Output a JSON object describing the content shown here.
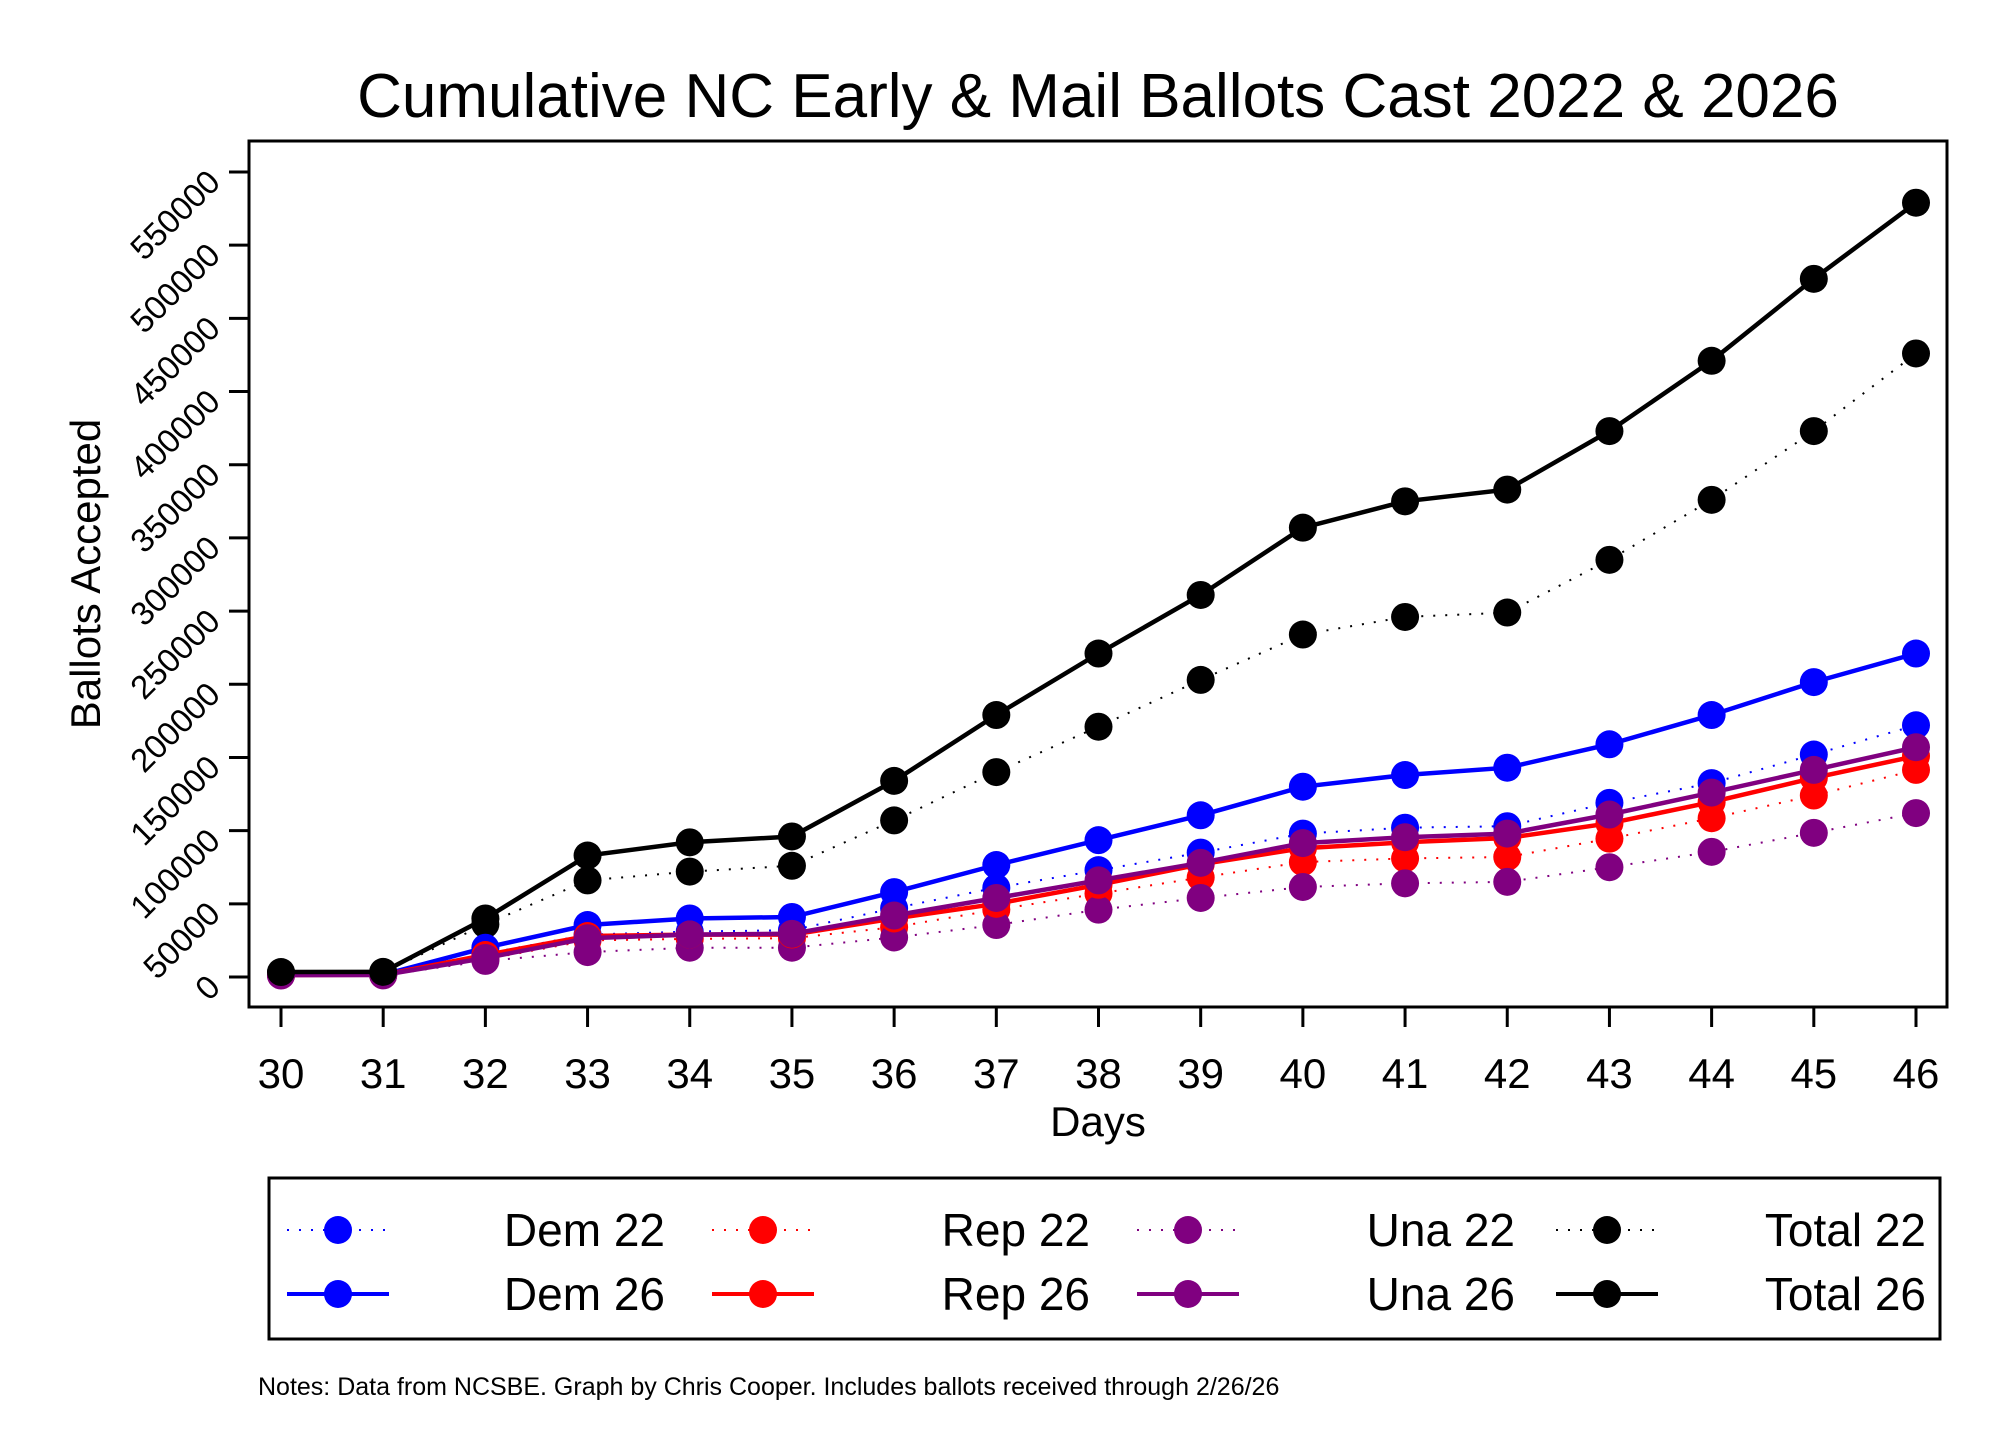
{
  "chart_data": {
    "type": "line",
    "title": "Cumulative NC Early & Mail Ballots Cast 2022 & 2026",
    "xlabel": "Days",
    "ylabel": "Ballots Accepted",
    "x": [
      30,
      31,
      32,
      33,
      34,
      35,
      36,
      37,
      38,
      39,
      40,
      41,
      42,
      43,
      44,
      45,
      46
    ],
    "x_ticks": [
      "30",
      "31",
      "32",
      "33",
      "34",
      "35",
      "36",
      "37",
      "38",
      "39",
      "40",
      "41",
      "42",
      "43",
      "44",
      "45",
      "46"
    ],
    "y_ticks": [
      "0",
      "50000",
      "100000",
      "150000",
      "200000",
      "250000",
      "300000",
      "350000",
      "400000",
      "450000",
      "500000",
      "550000"
    ],
    "y_tick_values": [
      0,
      50000,
      100000,
      150000,
      200000,
      250000,
      300000,
      350000,
      400000,
      450000,
      500000,
      550000
    ],
    "xlim": [
      30,
      46
    ],
    "ylim": [
      0,
      550000
    ],
    "grid": false,
    "legend_position": "bottom",
    "series": [
      {
        "name": "Dem 22",
        "color": "#0000ff",
        "style": "dotted",
        "values": [
          1400,
          1500,
          16000,
          29000,
          31000,
          32000,
          47000,
          61000,
          73000,
          85000,
          98000,
          102000,
          103000,
          119000,
          132500,
          152000,
          172000
        ]
      },
      {
        "name": "Rep 22",
        "color": "#ff0000",
        "style": "dotted",
        "values": [
          1300,
          1400,
          12000,
          25000,
          26000,
          26500,
          34000,
          46000,
          57000,
          68000,
          78500,
          81000,
          82000,
          94500,
          108500,
          124000,
          141500
        ]
      },
      {
        "name": "Una 22",
        "color": "#800080",
        "style": "dotted",
        "values": [
          1000,
          1100,
          11000,
          17000,
          20000,
          20000,
          27000,
          35500,
          46000,
          54000,
          61500,
          64000,
          65000,
          75000,
          85500,
          98500,
          112000
        ]
      },
      {
        "name": "Total 22",
        "color": "#000000",
        "style": "dotted",
        "values": [
          3000,
          3200,
          36000,
          66000,
          72000,
          76000,
          107000,
          140000,
          171000,
          203000,
          234000,
          246000,
          249000,
          285000,
          326000,
          373000,
          426000
        ]
      },
      {
        "name": "Dem 26",
        "color": "#0000ff",
        "style": "solid",
        "values": [
          1500,
          1600,
          20000,
          35500,
          40000,
          41000,
          58000,
          76500,
          93500,
          110500,
          130000,
          138000,
          143000,
          159000,
          179000,
          201500,
          221000
        ]
      },
      {
        "name": "Rep 26",
        "color": "#ff0000",
        "style": "solid",
        "values": [
          1400,
          1500,
          15000,
          28000,
          29000,
          29000,
          40000,
          50000,
          63000,
          77000,
          88000,
          92000,
          95000,
          105000,
          119500,
          136000,
          151000
        ]
      },
      {
        "name": "Una 26",
        "color": "#800080",
        "style": "solid",
        "values": [
          1300,
          1400,
          13000,
          26500,
          29000,
          29500,
          42000,
          54000,
          66000,
          78000,
          91500,
          95500,
          98000,
          111000,
          126000,
          141500,
          157000
        ]
      },
      {
        "name": "Total 26",
        "color": "#000000",
        "style": "solid",
        "values": [
          3400,
          3500,
          40000,
          83000,
          92000,
          96000,
          134000,
          179000,
          221000,
          261000,
          307000,
          325000,
          333000,
          373000,
          421000,
          477000,
          529000
        ]
      }
    ],
    "legend": [
      {
        "label": "Dem 22",
        "series": 0
      },
      {
        "label": "Rep 22",
        "series": 1
      },
      {
        "label": "Una 22",
        "series": 2
      },
      {
        "label": "Total 22",
        "series": 3
      },
      {
        "label": "Dem 26",
        "series": 4
      },
      {
        "label": "Rep 26",
        "series": 5
      },
      {
        "label": "Una 26",
        "series": 6
      },
      {
        "label": "Total 26",
        "series": 7
      }
    ],
    "notes": "Notes: Data from NCSBE. Graph by Chris Cooper. Includes ballots received through 2/26/26"
  }
}
